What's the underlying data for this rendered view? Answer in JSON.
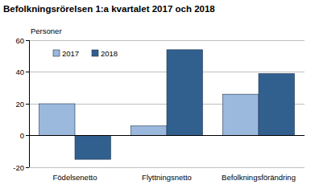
{
  "chart_data": {
    "type": "bar",
    "title": "Befolkningsrörelsen 1:a kvartalet 2017 och 2018",
    "ylabel": "Personer",
    "categories": [
      "Födelsenetto",
      "Flyttningsnetto",
      "Befolkningsförändring"
    ],
    "series": [
      {
        "name": "2017",
        "color": "#9bb8dd",
        "values": [
          20,
          6,
          26
        ]
      },
      {
        "name": "2018",
        "color": "#31608f",
        "values": [
          -15,
          54,
          39
        ]
      }
    ],
    "ylim": [
      -20,
      60
    ],
    "yticks": [
      -20,
      0,
      20,
      40,
      60
    ],
    "grid": true,
    "legend": "top-left"
  }
}
